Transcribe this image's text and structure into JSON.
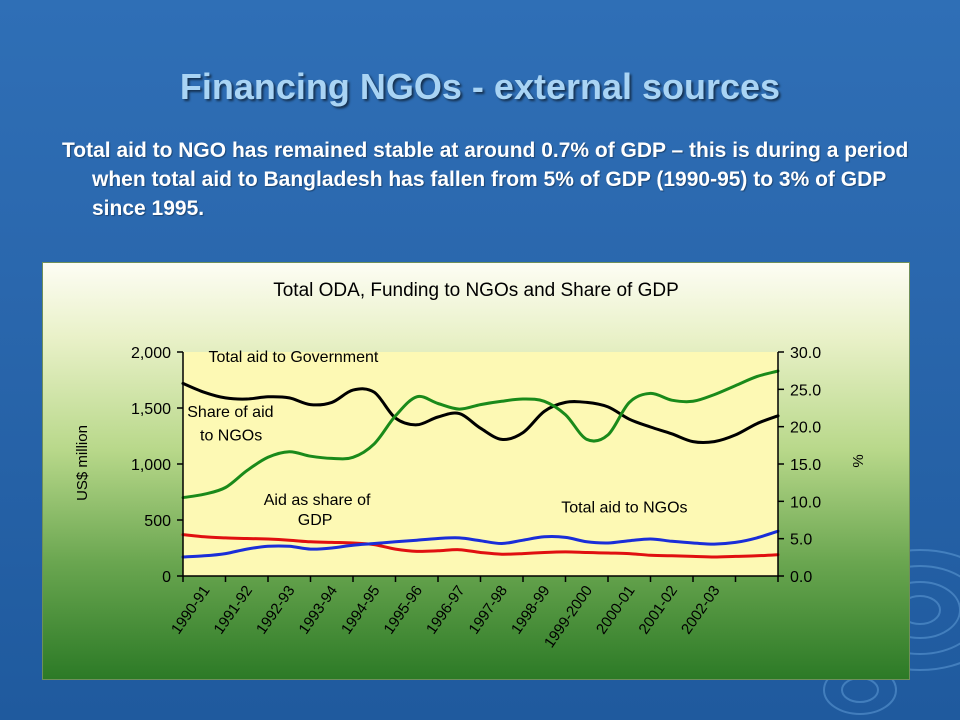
{
  "slide": {
    "title": "Financing NGOs - external sources",
    "body": "Total aid to NGO has remained stable at around 0.7% of GDP – this is during a period when total aid to Bangladesh has fallen from 5% of GDP (1990-95) to 3% of GDP since 1995."
  },
  "colors": {
    "background": "#2a67ad",
    "title": "#a9d4f4",
    "plot_area": "#fdf9b4",
    "total_aid_gov": "#000000",
    "share_aid_ngos": "#1a8a1a",
    "aid_share_gdp": "#e01010",
    "total_aid_ngos": "#1a2ed8"
  },
  "chart_data": {
    "type": "line",
    "title": "Total ODA, Funding to NGOs and Share of GDP",
    "ylabel": "US$ million",
    "y2label": "%",
    "ylim": [
      0,
      2000
    ],
    "y2lim": [
      0,
      30
    ],
    "yticks": [
      "0",
      "500",
      "1,000",
      "1,500",
      "2,000"
    ],
    "y2ticks": [
      "0.0",
      "5.0",
      "10.0",
      "15.0",
      "20.0",
      "25.0",
      "30.0"
    ],
    "categories": [
      "1990-91",
      "1991-92",
      "1992-93",
      "1993-94",
      "1994-95",
      "1995-96",
      "1996-97",
      "1997-98",
      "1998-99",
      "1999-2000",
      "2000-01",
      "2001-02",
      "2002-03"
    ],
    "x_range": [
      0.5,
      14.5
    ],
    "series": [
      {
        "name": "Total aid to Government",
        "axis": "left",
        "color": "#000000",
        "x": [
          0.5,
          1.0,
          1.5,
          2.0,
          2.5,
          3.0,
          3.5,
          4.0,
          4.5,
          5.0,
          5.5,
          6.0,
          6.5,
          7.0,
          7.5,
          8.0,
          8.5,
          9.0,
          9.5,
          10.0,
          10.5,
          11.0,
          11.5,
          12.0,
          12.5,
          13.0,
          13.5,
          14.0,
          14.5
        ],
        "values": [
          1720,
          1640,
          1590,
          1580,
          1600,
          1590,
          1530,
          1550,
          1660,
          1640,
          1410,
          1350,
          1420,
          1450,
          1320,
          1220,
          1280,
          1470,
          1550,
          1550,
          1510,
          1400,
          1330,
          1270,
          1200,
          1200,
          1260,
          1360,
          1430
        ]
      },
      {
        "name": "Share of aid to NGOs",
        "axis": "left",
        "color": "#1a8a1a",
        "x": [
          0.5,
          1.0,
          1.5,
          2.0,
          2.5,
          3.0,
          3.5,
          4.0,
          4.5,
          5.0,
          5.5,
          6.0,
          6.5,
          7.0,
          7.5,
          8.0,
          8.5,
          9.0,
          9.5,
          10.0,
          10.5,
          11.0,
          11.5,
          12.0,
          12.5,
          13.0,
          13.5,
          14.0,
          14.5
        ],
        "values": [
          700,
          730,
          790,
          940,
          1060,
          1110,
          1070,
          1050,
          1060,
          1180,
          1430,
          1600,
          1540,
          1490,
          1530,
          1560,
          1580,
          1560,
          1440,
          1220,
          1260,
          1550,
          1630,
          1570,
          1560,
          1620,
          1700,
          1780,
          1830
        ]
      },
      {
        "name": "Aid as share of GDP",
        "axis": "left",
        "color": "#e01010",
        "x": [
          0.5,
          1.0,
          1.5,
          2.0,
          2.5,
          3.0,
          3.5,
          4.0,
          4.5,
          5.0,
          5.5,
          6.0,
          6.5,
          7.0,
          7.5,
          8.0,
          8.5,
          9.0,
          9.5,
          10.0,
          10.5,
          11.0,
          11.5,
          12.0,
          12.5,
          13.0,
          13.5,
          14.0,
          14.5
        ],
        "values": [
          370,
          350,
          340,
          335,
          330,
          320,
          305,
          300,
          295,
          280,
          240,
          220,
          225,
          235,
          210,
          195,
          200,
          210,
          215,
          210,
          205,
          200,
          185,
          180,
          175,
          170,
          175,
          180,
          190
        ]
      },
      {
        "name": "Total aid to NGOs",
        "axis": "left",
        "color": "#1a2ed8",
        "x": [
          0.5,
          1.0,
          1.5,
          2.0,
          2.5,
          3.0,
          3.5,
          4.0,
          4.5,
          5.0,
          5.5,
          6.0,
          6.5,
          7.0,
          7.5,
          8.0,
          8.5,
          9.0,
          9.5,
          10.0,
          10.5,
          11.0,
          11.5,
          12.0,
          12.5,
          13.0,
          13.5,
          14.0,
          14.5
        ],
        "values": [
          170,
          180,
          200,
          240,
          265,
          265,
          240,
          250,
          275,
          290,
          305,
          320,
          335,
          340,
          315,
          290,
          320,
          350,
          345,
          305,
          295,
          315,
          330,
          310,
          295,
          285,
          300,
          340,
          400
        ]
      }
    ],
    "annotations": [
      {
        "text": "Total aid to Government",
        "x": 1.1,
        "y": 1910
      },
      {
        "text": "Share of aid",
        "x": 0.6,
        "y": 1420
      },
      {
        "text": "to NGOs",
        "x": 0.9,
        "y": 1210
      },
      {
        "text": "Aid as share of",
        "x": 2.4,
        "y": 635
      },
      {
        "text": "GDP",
        "x": 3.2,
        "y": 455
      },
      {
        "text": "Total aid to NGOs",
        "x": 9.4,
        "y": 565
      }
    ],
    "grid": false,
    "legend": "none"
  }
}
